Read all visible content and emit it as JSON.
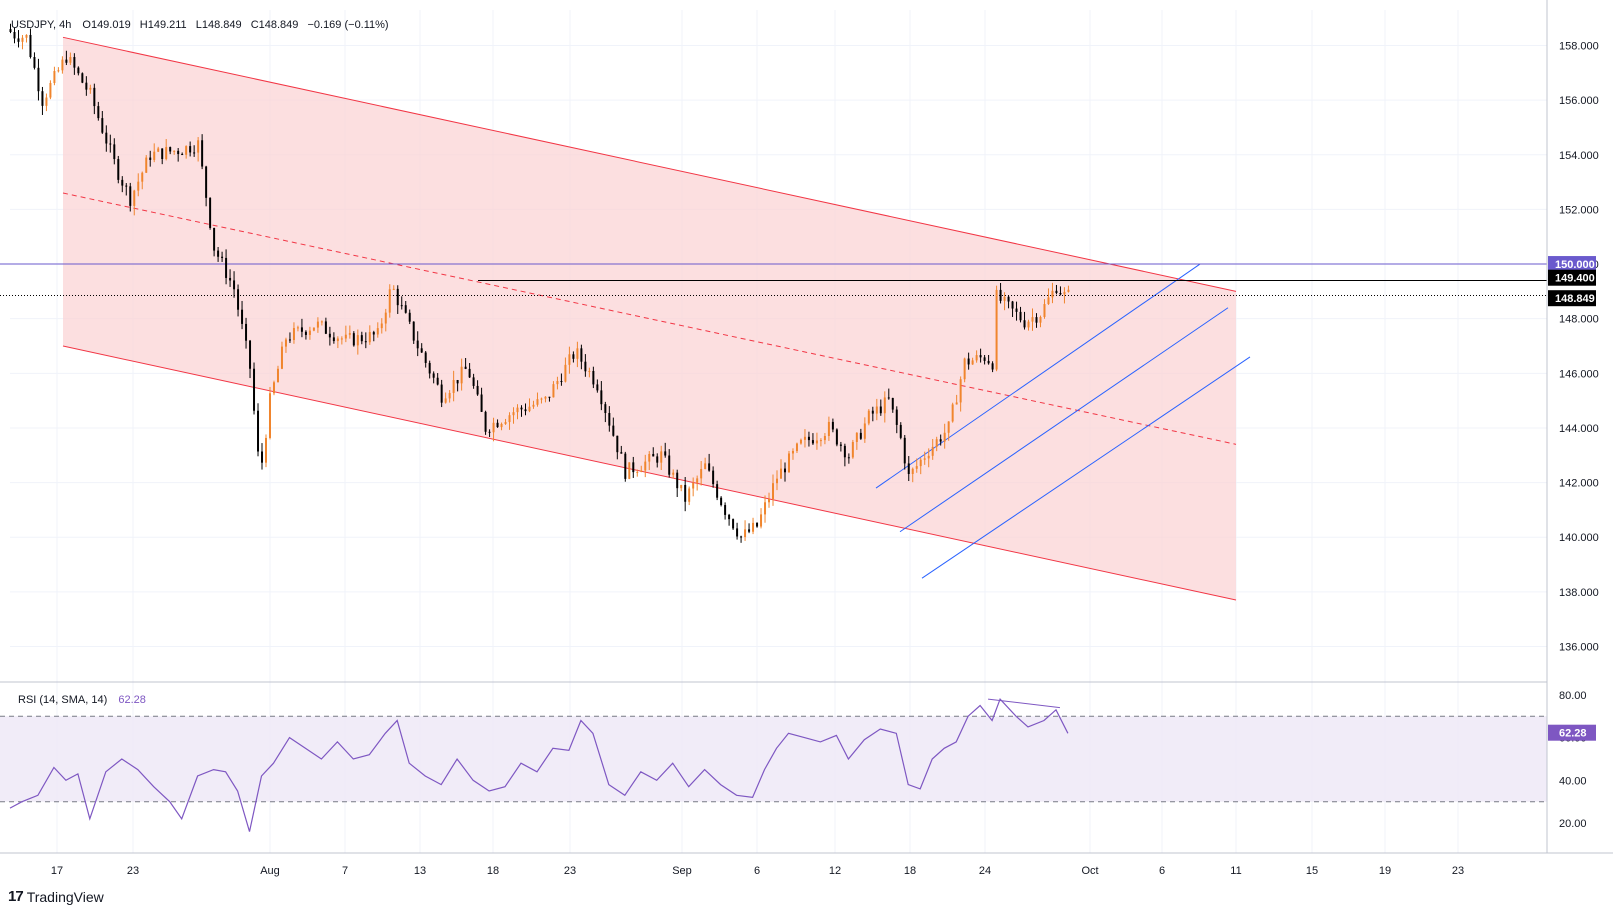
{
  "header": {
    "symbol": "USDJPY, 4h",
    "open": "O149.019",
    "high": "H149.211",
    "low": "L148.849",
    "close": "C148.849",
    "change": "−0.169 (−0.11%)"
  },
  "rsi_header": {
    "label": "RSI (14, SMA, 14)",
    "value": "62.28"
  },
  "price_tags": {
    "level_150": "150.000",
    "level_1494": "149.400",
    "last": "148.849",
    "rsi_last": "62.28"
  },
  "brand": {
    "name": "TradingView",
    "logo_glyph": "17"
  },
  "colors": {
    "up": "#f0852d",
    "down": "#000000",
    "channel_red": "#f23645",
    "channel_fill": "#fbd4d6",
    "channel_blue": "#2962ff",
    "horizontal_150": "#6a5acd",
    "rsi_line": "#7e57c2",
    "rsi_band": "#ede7f6"
  },
  "chart_data": [
    {
      "type": "candlestick",
      "instrument": "USDJPY",
      "timeframe": "4h",
      "x_tick_labels": [
        "17",
        "23",
        "Aug",
        "7",
        "13",
        "18",
        "23",
        "Sep",
        "6",
        "12",
        "18",
        "24",
        "Oct",
        "6",
        "11",
        "15",
        "19",
        "23"
      ],
      "y_tick_labels": [
        "158.000",
        "156.000",
        "154.000",
        "152.000",
        "150.000",
        "148.000",
        "146.000",
        "144.000",
        "142.000",
        "140.000",
        "138.000",
        "136.000"
      ],
      "ylim": [
        134.7,
        159.3
      ],
      "price_path": [
        {
          "t": 0,
          "p": 158.6
        },
        {
          "t": 4,
          "p": 158.4
        },
        {
          "t": 10,
          "p": 158.3
        },
        {
          "t": 18,
          "p": 156.0
        },
        {
          "t": 30,
          "p": 157.6
        },
        {
          "t": 42,
          "p": 156.2
        },
        {
          "t": 55,
          "p": 153.5
        },
        {
          "t": 62,
          "p": 152.4
        },
        {
          "t": 72,
          "p": 154.0
        },
        {
          "t": 88,
          "p": 154.2
        },
        {
          "t": 96,
          "p": 154.4
        },
        {
          "t": 104,
          "p": 150.6
        },
        {
          "t": 114,
          "p": 149.1
        },
        {
          "t": 122,
          "p": 146.2
        },
        {
          "t": 127,
          "p": 142.2
        },
        {
          "t": 132,
          "p": 145.0
        },
        {
          "t": 140,
          "p": 147.3
        },
        {
          "t": 155,
          "p": 147.8
        },
        {
          "t": 170,
          "p": 147.2
        },
        {
          "t": 186,
          "p": 147.4
        },
        {
          "t": 193,
          "p": 149.2
        },
        {
          "t": 206,
          "p": 147.0
        },
        {
          "t": 218,
          "p": 145.2
        },
        {
          "t": 231,
          "p": 146.2
        },
        {
          "t": 240,
          "p": 144.0
        },
        {
          "t": 254,
          "p": 144.6
        },
        {
          "t": 270,
          "p": 145.0
        },
        {
          "t": 285,
          "p": 146.8
        },
        {
          "t": 296,
          "p": 145.6
        },
        {
          "t": 310,
          "p": 142.4
        },
        {
          "t": 328,
          "p": 143.0
        },
        {
          "t": 340,
          "p": 141.4
        },
        {
          "t": 350,
          "p": 142.6
        },
        {
          "t": 360,
          "p": 141.0
        },
        {
          "t": 368,
          "p": 140.0
        },
        {
          "t": 376,
          "p": 140.4
        },
        {
          "t": 386,
          "p": 142.2
        },
        {
          "t": 398,
          "p": 143.4
        },
        {
          "t": 412,
          "p": 144.0
        },
        {
          "t": 422,
          "p": 143.0
        },
        {
          "t": 432,
          "p": 144.4
        },
        {
          "t": 442,
          "p": 145.0
        },
        {
          "t": 448,
          "p": 143.6
        },
        {
          "t": 452,
          "p": 142.2
        },
        {
          "t": 462,
          "p": 143.2
        },
        {
          "t": 472,
          "p": 144.0
        },
        {
          "t": 480,
          "p": 146.4
        },
        {
          "t": 490,
          "p": 146.6
        },
        {
          "t": 494,
          "p": 146.4
        },
        {
          "t": 496,
          "p": 148.8
        },
        {
          "t": 502,
          "p": 148.4
        },
        {
          "t": 510,
          "p": 147.9
        },
        {
          "t": 518,
          "p": 148.2
        },
        {
          "t": 526,
          "p": 149.2
        },
        {
          "t": 530,
          "p": 148.85
        }
      ],
      "lines": [
        {
          "name": "upper-channel",
          "from": [
            "Jul 17",
            158.3
          ],
          "to": [
            "Oct 10",
            149.0
          ]
        },
        {
          "name": "lower-channel",
          "from": [
            "Jul 17",
            147.0
          ],
          "to": [
            "Oct 10",
            137.7
          ]
        },
        {
          "name": "channel-midline",
          "from": [
            "Jul 17",
            152.6
          ],
          "to": [
            "Oct 10",
            143.4
          ]
        },
        {
          "name": "rising-channel-upper",
          "from": [
            "Sep 14",
            141.8
          ],
          "to": [
            "Oct 6",
            150.0
          ]
        },
        {
          "name": "rising-channel-middle",
          "from": [
            "Sep 16",
            140.2
          ],
          "to": [
            "Oct 10",
            148.4
          ]
        },
        {
          "name": "rising-channel-lower",
          "from": [
            "Sep 17",
            138.5
          ],
          "to": [
            "Oct 10",
            146.6
          ]
        },
        {
          "name": "level-150",
          "value": 150.0
        },
        {
          "name": "level-149.4",
          "value": 149.4
        },
        {
          "name": "last-price",
          "value": 148.849
        }
      ]
    },
    {
      "type": "line",
      "indicator": "RSI (14, SMA, 14)",
      "y_tick_labels": [
        "80.00",
        "60.00",
        "40.00",
        "20.00"
      ],
      "ylim": [
        6,
        86
      ],
      "bands": [
        30,
        70
      ],
      "last": 62.28,
      "values": [
        [
          0,
          27
        ],
        [
          6,
          30
        ],
        [
          14,
          33
        ],
        [
          22,
          46
        ],
        [
          28,
          40
        ],
        [
          34,
          43
        ],
        [
          40,
          22
        ],
        [
          48,
          44
        ],
        [
          56,
          50
        ],
        [
          64,
          45
        ],
        [
          72,
          37
        ],
        [
          80,
          30
        ],
        [
          86,
          22
        ],
        [
          94,
          42
        ],
        [
          102,
          45
        ],
        [
          108,
          44
        ],
        [
          114,
          35
        ],
        [
          120,
          16
        ],
        [
          126,
          42
        ],
        [
          132,
          48
        ],
        [
          140,
          60
        ],
        [
          148,
          55
        ],
        [
          156,
          50
        ],
        [
          164,
          58
        ],
        [
          172,
          50
        ],
        [
          180,
          52
        ],
        [
          188,
          62
        ],
        [
          194,
          68
        ],
        [
          200,
          48
        ],
        [
          208,
          42
        ],
        [
          216,
          38
        ],
        [
          224,
          50
        ],
        [
          232,
          40
        ],
        [
          240,
          35
        ],
        [
          248,
          37
        ],
        [
          256,
          48
        ],
        [
          264,
          44
        ],
        [
          272,
          55
        ],
        [
          280,
          54
        ],
        [
          286,
          68
        ],
        [
          292,
          62
        ],
        [
          300,
          38
        ],
        [
          308,
          33
        ],
        [
          316,
          44
        ],
        [
          324,
          40
        ],
        [
          332,
          48
        ],
        [
          340,
          37
        ],
        [
          348,
          45
        ],
        [
          356,
          38
        ],
        [
          364,
          33
        ],
        [
          372,
          32
        ],
        [
          378,
          45
        ],
        [
          384,
          55
        ],
        [
          390,
          62
        ],
        [
          398,
          60
        ],
        [
          406,
          58
        ],
        [
          414,
          61
        ],
        [
          420,
          50
        ],
        [
          428,
          59
        ],
        [
          436,
          64
        ],
        [
          444,
          62
        ],
        [
          450,
          38
        ],
        [
          456,
          36
        ],
        [
          462,
          50
        ],
        [
          468,
          55
        ],
        [
          474,
          58
        ],
        [
          480,
          70
        ],
        [
          486,
          75
        ],
        [
          492,
          68
        ],
        [
          496,
          78
        ],
        [
          504,
          70
        ],
        [
          510,
          65
        ],
        [
          518,
          68
        ],
        [
          524,
          73
        ],
        [
          530,
          62
        ]
      ],
      "divergence_line": {
        "from": [
          490,
          78
        ],
        "to": [
          526,
          74
        ]
      }
    }
  ]
}
